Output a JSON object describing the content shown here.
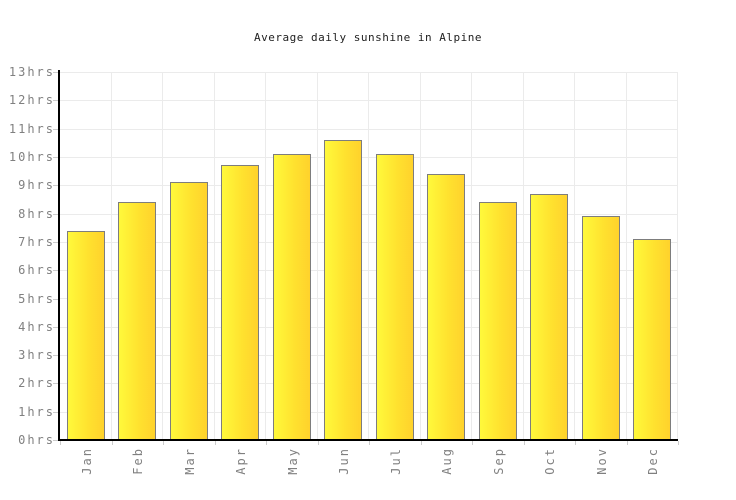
{
  "chart_data": {
    "type": "bar",
    "title": "Average daily sunshine in Alpine",
    "categories": [
      "Jan",
      "Feb",
      "Mar",
      "Apr",
      "May",
      "Jun",
      "Jul",
      "Aug",
      "Sep",
      "Oct",
      "Nov",
      "Dec"
    ],
    "values": [
      7.4,
      8.4,
      9.1,
      9.7,
      10.1,
      10.6,
      10.1,
      9.4,
      8.4,
      8.7,
      7.9,
      7.1
    ],
    "unit": "hrs",
    "ylim": [
      0,
      13
    ],
    "ytick_step": 1,
    "ytick_labels": [
      "0hrs",
      "1hrs",
      "2hrs",
      "3hrs",
      "4hrs",
      "5hrs",
      "6hrs",
      "7hrs",
      "8hrs",
      "9hrs",
      "10hrs",
      "11hrs",
      "12hrs",
      "13hrs"
    ],
    "grid": true,
    "legend": "none",
    "colors": {
      "bar_gradient_left": "#fff93b",
      "bar_gradient_right": "#ffd22c",
      "bar_border": "#7d7d7d",
      "gridline": "#ebebeb",
      "axis_line": "#000000",
      "tick": "#cccccc",
      "axis_label": "#808080",
      "title": "#222222",
      "background": "#ffffff"
    }
  }
}
